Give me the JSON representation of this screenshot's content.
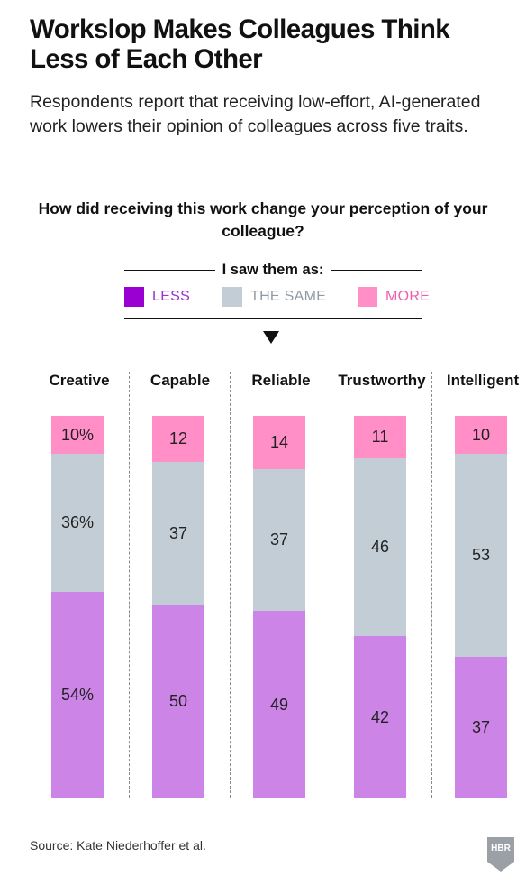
{
  "title": "Workslop Makes Colleagues Think Less of Each Other",
  "subtitle": "Respondents report that receiving low-effort, AI-generated work lowers their opinion of colleagues across five traits.",
  "question": "How did receiving this work change your perception of your colleague?",
  "legend_title": "I saw them as:",
  "legend": [
    {
      "label": "LESS",
      "color": "#9b00d3",
      "text_color": "#9b2fd0"
    },
    {
      "label": "THE SAME",
      "color": "#c3cdd5",
      "text_color": "#8f9aa3"
    },
    {
      "label": "MORE",
      "color": "#ff8fc6",
      "text_color": "#ee5fae"
    }
  ],
  "source": "Source: Kate Niederhoffer et al.",
  "logo_text": "HBR",
  "colors": {
    "less": "#cc85e6",
    "same": "#c3cdd5",
    "more": "#ff8fc6"
  },
  "chart_data": {
    "type": "bar",
    "stacked": true,
    "categories": [
      "Creative",
      "Capable",
      "Reliable",
      "Trustworthy",
      "Intelligent"
    ],
    "series": [
      {
        "name": "LESS",
        "values": [
          54,
          50,
          49,
          42,
          37
        ],
        "labels": [
          "54%",
          "50",
          "49",
          "42",
          "37"
        ]
      },
      {
        "name": "THE SAME",
        "values": [
          36,
          37,
          37,
          46,
          53
        ],
        "labels": [
          "36%",
          "37",
          "37",
          "46",
          "53"
        ]
      },
      {
        "name": "MORE",
        "values": [
          10,
          12,
          14,
          11,
          10
        ],
        "labels": [
          "10%",
          "12",
          "14",
          "11",
          "10"
        ]
      }
    ]
  }
}
